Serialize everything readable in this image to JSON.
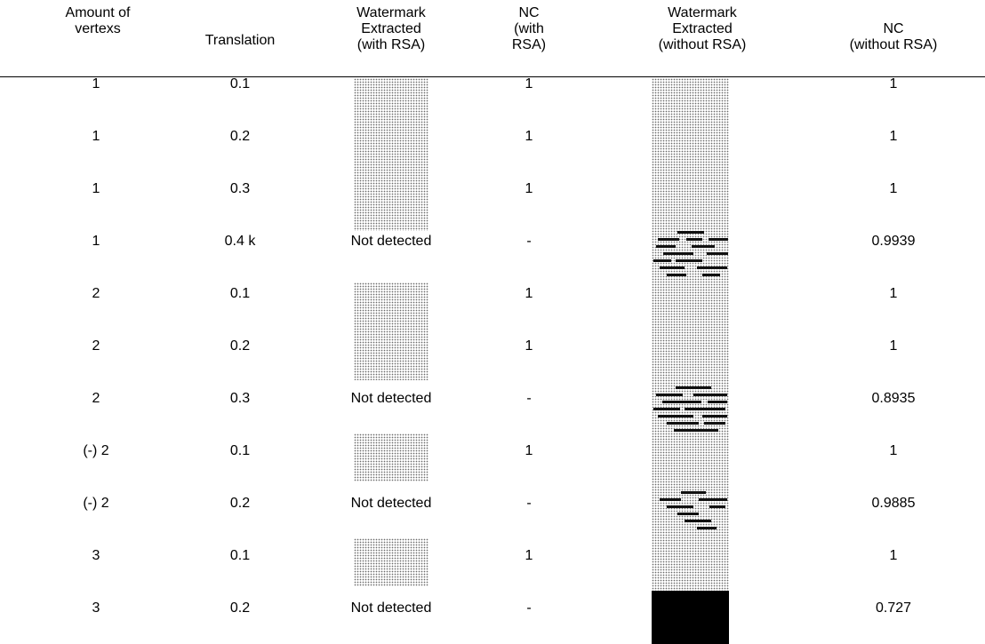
{
  "headers": [
    "Amount of\nvertexs",
    "Translation",
    "Watermark\nExtracted\n(with RSA)",
    "NC\n(with\nRSA)",
    "Watermark\nExtracted\n(without RSA)",
    "NC\n(without RSA)"
  ],
  "rows": [
    {
      "vertexs": "1",
      "translation": "0.1",
      "with_rsa": "",
      "nc_with": "1",
      "nc_without": "1"
    },
    {
      "vertexs": "1",
      "translation": "0.2",
      "with_rsa": "",
      "nc_with": "1",
      "nc_without": "1"
    },
    {
      "vertexs": "1",
      "translation": "0.3",
      "with_rsa": "",
      "nc_with": "1",
      "nc_without": "1"
    },
    {
      "vertexs": "1",
      "translation": "0.4 k",
      "with_rsa": "Not detected",
      "nc_with": "-",
      "nc_without": "0.9939"
    },
    {
      "vertexs": "2",
      "translation": "0.1",
      "with_rsa": "",
      "nc_with": "1",
      "nc_without": "1"
    },
    {
      "vertexs": "2",
      "translation": "0.2",
      "with_rsa": "",
      "nc_with": "1",
      "nc_without": "1"
    },
    {
      "vertexs": "2",
      "translation": "0.3",
      "with_rsa": "Not detected",
      "nc_with": "-",
      "nc_without": "0.8935"
    },
    {
      "vertexs": "(-) 2",
      "translation": "0.1",
      "with_rsa": "",
      "nc_with": "1",
      "nc_without": "1"
    },
    {
      "vertexs": "(-) 2",
      "translation": "0.2",
      "with_rsa": "Not detected",
      "nc_with": "-",
      "nc_without": "0.9885"
    },
    {
      "vertexs": "3",
      "translation": "0.1",
      "with_rsa": "",
      "nc_with": "1",
      "nc_without": "1"
    },
    {
      "vertexs": "3",
      "translation": "0.2",
      "with_rsa": "Not detected",
      "nc_with": "-",
      "nc_without": "0.727"
    }
  ]
}
